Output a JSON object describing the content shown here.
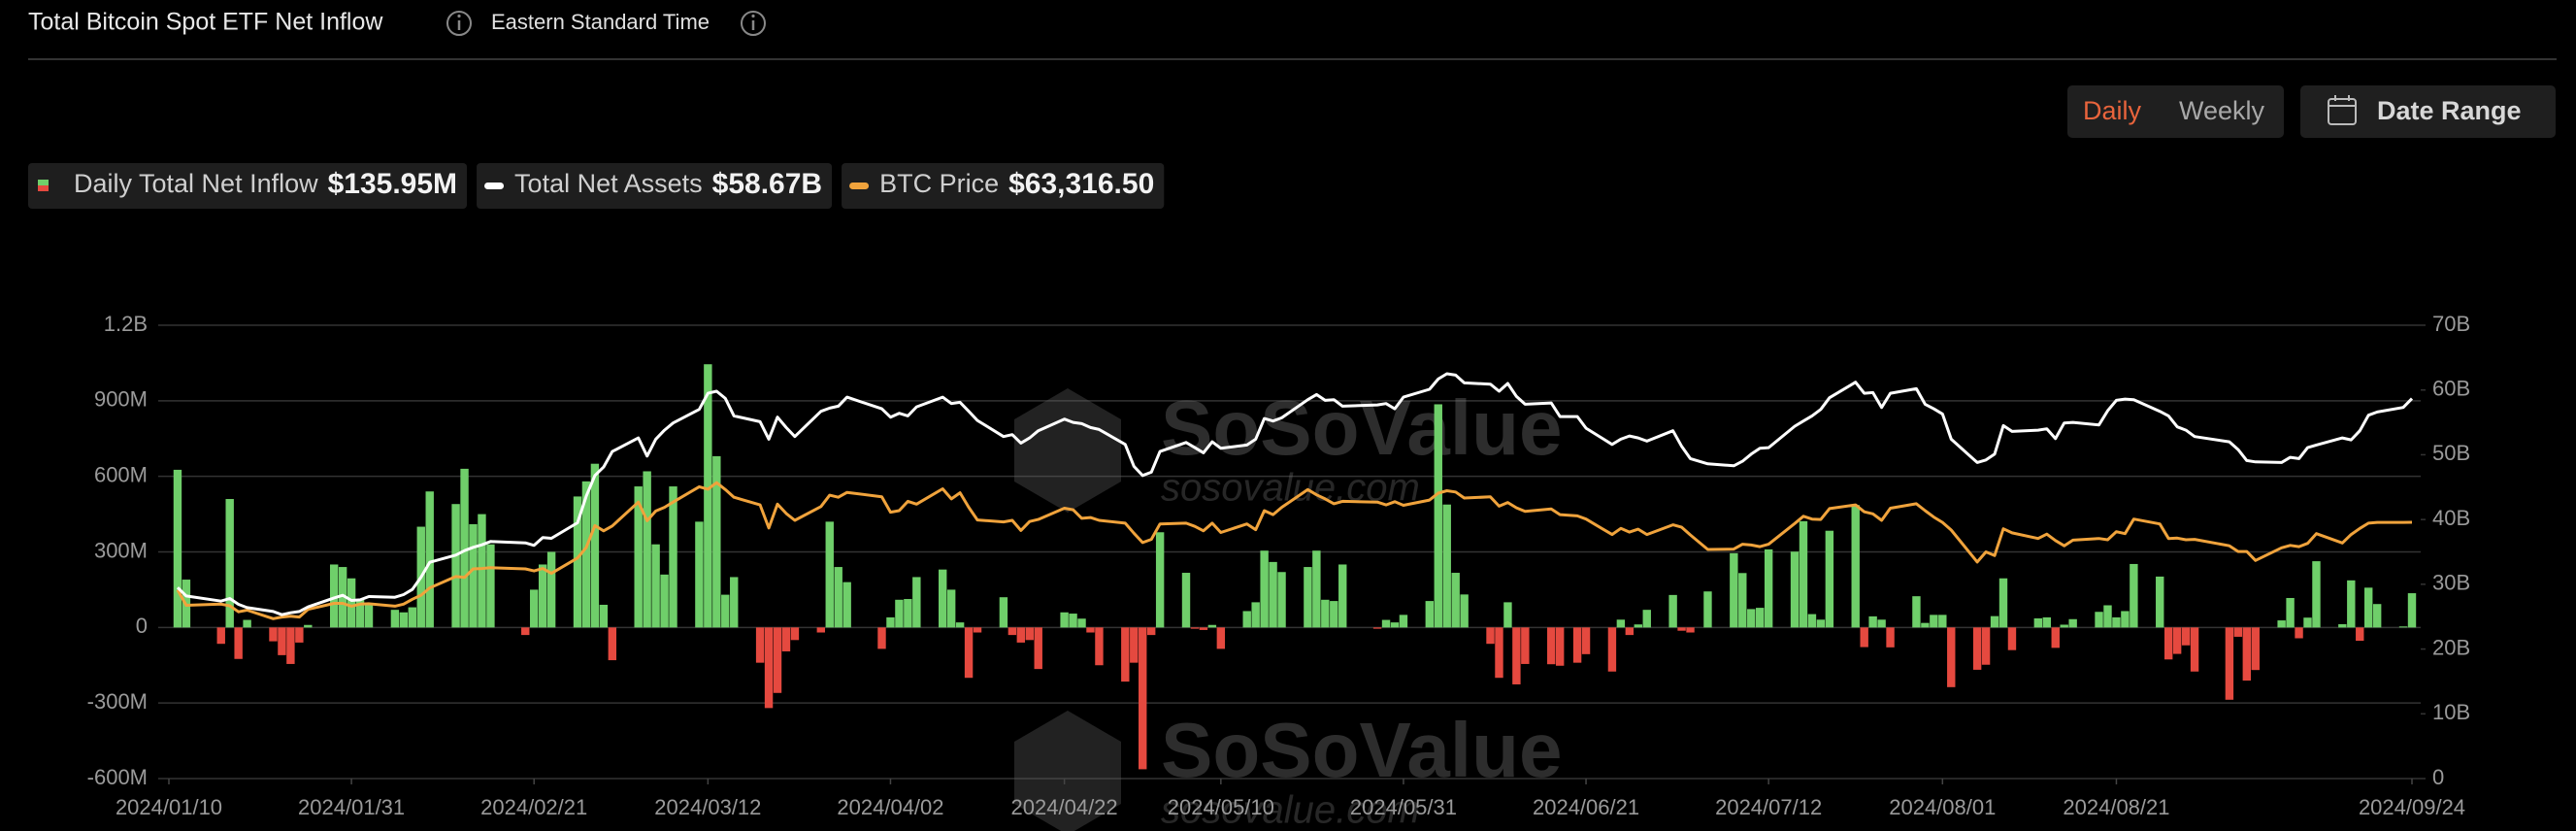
{
  "header": {
    "title": "Total Bitcoin Spot ETF Net Inflow",
    "timezone": "Eastern Standard Time"
  },
  "controls": {
    "periods": [
      "Daily",
      "Weekly"
    ],
    "active_period": "Daily",
    "date_range": "Date Range"
  },
  "watermark": {
    "brand": "SoSoValue",
    "url": "sosovalue.com"
  },
  "chart_data": {
    "type": "bar",
    "x": [
      "2024/01/11",
      "2024/01/12",
      "2024/01/16",
      "2024/01/17",
      "2024/01/18",
      "2024/01/19",
      "2024/01/22",
      "2024/01/23",
      "2024/01/24",
      "2024/01/25",
      "2024/01/26",
      "2024/01/29",
      "2024/01/30",
      "2024/01/31",
      "2024/02/01",
      "2024/02/02",
      "2024/02/05",
      "2024/02/06",
      "2024/02/07",
      "2024/02/08",
      "2024/02/09",
      "2024/02/12",
      "2024/02/13",
      "2024/02/14",
      "2024/02/15",
      "2024/02/16",
      "2024/02/20",
      "2024/02/21",
      "2024/02/22",
      "2024/02/23",
      "2024/02/26",
      "2024/02/27",
      "2024/02/28",
      "2024/02/29",
      "2024/03/01",
      "2024/03/04",
      "2024/03/05",
      "2024/03/06",
      "2024/03/07",
      "2024/03/08",
      "2024/03/11",
      "2024/03/12",
      "2024/03/13",
      "2024/03/14",
      "2024/03/15",
      "2024/03/18",
      "2024/03/19",
      "2024/03/20",
      "2024/03/21",
      "2024/03/22",
      "2024/03/25",
      "2024/03/26",
      "2024/03/27",
      "2024/03/28",
      "2024/04/01",
      "2024/04/02",
      "2024/04/03",
      "2024/04/04",
      "2024/04/05",
      "2024/04/08",
      "2024/04/09",
      "2024/04/10",
      "2024/04/11",
      "2024/04/12",
      "2024/04/15",
      "2024/04/16",
      "2024/04/17",
      "2024/04/18",
      "2024/04/19",
      "2024/04/22",
      "2024/04/23",
      "2024/04/24",
      "2024/04/25",
      "2024/04/26",
      "2024/04/29",
      "2024/04/30",
      "2024/05/01",
      "2024/05/02",
      "2024/05/03",
      "2024/05/06",
      "2024/05/07",
      "2024/05/08",
      "2024/05/09",
      "2024/05/10",
      "2024/05/13",
      "2024/05/14",
      "2024/05/15",
      "2024/05/16",
      "2024/05/17",
      "2024/05/20",
      "2024/05/21",
      "2024/05/22",
      "2024/05/23",
      "2024/05/24",
      "2024/05/28",
      "2024/05/29",
      "2024/05/30",
      "2024/05/31",
      "2024/06/03",
      "2024/06/04",
      "2024/06/05",
      "2024/06/06",
      "2024/06/07",
      "2024/06/10",
      "2024/06/11",
      "2024/06/12",
      "2024/06/13",
      "2024/06/14",
      "2024/06/17",
      "2024/06/18",
      "2024/06/20",
      "2024/06/21",
      "2024/06/24",
      "2024/06/25",
      "2024/06/26",
      "2024/06/27",
      "2024/06/28",
      "2024/07/01",
      "2024/07/02",
      "2024/07/03",
      "2024/07/05",
      "2024/07/08",
      "2024/07/09",
      "2024/07/10",
      "2024/07/11",
      "2024/07/12",
      "2024/07/15",
      "2024/07/16",
      "2024/07/17",
      "2024/07/18",
      "2024/07/19",
      "2024/07/22",
      "2024/07/23",
      "2024/07/24",
      "2024/07/25",
      "2024/07/26",
      "2024/07/29",
      "2024/07/30",
      "2024/07/31",
      "2024/08/01",
      "2024/08/02",
      "2024/08/05",
      "2024/08/06",
      "2024/08/07",
      "2024/08/08",
      "2024/08/09",
      "2024/08/12",
      "2024/08/13",
      "2024/08/14",
      "2024/08/15",
      "2024/08/16",
      "2024/08/19",
      "2024/08/20",
      "2024/08/21",
      "2024/08/22",
      "2024/08/23",
      "2024/08/26",
      "2024/08/27",
      "2024/08/28",
      "2024/08/29",
      "2024/08/30",
      "2024/09/03",
      "2024/09/04",
      "2024/09/05",
      "2024/09/06",
      "2024/09/09",
      "2024/09/10",
      "2024/09/11",
      "2024/09/12",
      "2024/09/13",
      "2024/09/16",
      "2024/09/17",
      "2024/09/18",
      "2024/09/19",
      "2024/09/20",
      "2024/09/23",
      "2024/09/24"
    ],
    "xlim": [
      "2024/01/10",
      "2024/09/24"
    ],
    "xticks": [
      "2024/01/10",
      "2024/01/31",
      "2024/02/21",
      "2024/03/12",
      "2024/04/02",
      "2024/04/22",
      "2024/05/10",
      "2024/05/31",
      "2024/06/21",
      "2024/07/12",
      "2024/08/01",
      "2024/08/21",
      "2024/09/24"
    ],
    "ylim": [
      -600,
      1200
    ],
    "yticks": [
      {
        "value": -600,
        "label": "-600M"
      },
      {
        "value": -300,
        "label": "-300M"
      },
      0,
      {
        "value": 300,
        "label": "300M"
      },
      {
        "value": 600,
        "label": "600M"
      },
      {
        "value": 900,
        "label": "900M"
      },
      {
        "value": 1200,
        "label": "1.2B"
      }
    ],
    "y2lim": [
      0,
      70
    ],
    "y2ticks": [
      0,
      {
        "value": 10,
        "label": "10B"
      },
      {
        "value": 20,
        "label": "20B"
      },
      {
        "value": 30,
        "label": "30B"
      },
      {
        "value": 40,
        "label": "40B"
      },
      {
        "value": 50,
        "label": "50B"
      },
      {
        "value": 60,
        "label": "60B"
      },
      {
        "value": 70,
        "label": "70B"
      }
    ],
    "y3lim": [
      0,
      112000
    ],
    "grid": true,
    "series": [
      {
        "name": "Daily Total Net Inflow",
        "type": "bar",
        "axis": "y",
        "color": "#6fcf6a",
        "negative_color": "#e5493f",
        "latest_label": "$135.95M",
        "values": [
          626,
          190,
          -65,
          510,
          -125,
          30,
          -55,
          -110,
          -145,
          -60,
          10,
          250,
          240,
          195,
          110,
          90,
          70,
          60,
          80,
          400,
          540,
          490,
          630,
          410,
          450,
          330,
          -30,
          150,
          250,
          300,
          520,
          580,
          650,
          90,
          -130,
          560,
          620,
          330,
          210,
          560,
          420,
          1045,
          680,
          130,
          200,
          -140,
          -320,
          -260,
          -95,
          -50,
          -20,
          420,
          240,
          180,
          -85,
          40,
          110,
          113,
          200,
          230,
          150,
          20,
          -200,
          -20,
          120,
          -30,
          -60,
          -50,
          -165,
          60,
          55,
          35,
          -20,
          -150,
          -215,
          -140,
          -563,
          -30,
          378,
          217,
          -5,
          -10,
          10,
          -85,
          65,
          100,
          305,
          260,
          220,
          240,
          305,
          110,
          105,
          250,
          -5,
          30,
          20,
          50,
          105,
          886,
          488,
          217,
          131,
          -65,
          -200,
          100,
          -226,
          -145,
          -146,
          -152,
          -140,
          -106,
          -175,
          31,
          -30,
          12,
          70,
          129,
          -13,
          -20,
          143,
          295,
          216,
          73,
          78,
          310,
          301,
          422,
          53,
          31,
          384,
          486,
          -78,
          44,
          31,
          -79,
          124,
          18,
          50,
          50,
          -237,
          -168,
          -148,
          45,
          195,
          -90,
          36,
          40,
          -81,
          11,
          33,
          62,
          88,
          40,
          65,
          252,
          202,
          -127,
          -105,
          -71,
          -175,
          -287,
          -37,
          -211,
          -169,
          28,
          117,
          -43,
          39,
          263,
          13,
          187,
          -53,
          158,
          93,
          4,
          135.95
        ]
      },
      {
        "name": "Total Net Assets",
        "type": "line",
        "axis": "y2",
        "color": "#ffffff",
        "latest_label": "$58.67B",
        "values": [
          29.5,
          28.2,
          27.4,
          27.8,
          26.9,
          26.4,
          25.8,
          25.3,
          25.6,
          25.8,
          26.5,
          27.9,
          28.3,
          27.5,
          27.6,
          28.1,
          28.0,
          28.4,
          29.2,
          31.1,
          33.4,
          34.5,
          35.2,
          35.7,
          36.1,
          36.6,
          36.4,
          36.0,
          37.2,
          37.1,
          39.5,
          43.6,
          46.8,
          48.1,
          50.5,
          52.6,
          49.8,
          52.4,
          53.8,
          54.9,
          57.0,
          59.5,
          59.8,
          58.7,
          56.0,
          55.1,
          52.4,
          55.8,
          54.2,
          52.8,
          56.7,
          57.2,
          57.5,
          58.9,
          57.1,
          55.8,
          56.4,
          56.0,
          57.4,
          58.9,
          57.9,
          58.1,
          56.7,
          55.3,
          52.8,
          53.1,
          51.8,
          52.6,
          53.7,
          55.5,
          55.0,
          54.8,
          54.2,
          53.9,
          51.6,
          48.2,
          46.8,
          47.3,
          50.5,
          51.9,
          51.1,
          50.3,
          52.0,
          51.0,
          51.5,
          52.4,
          55.6,
          55.2,
          55.7,
          58.5,
          59.3,
          58.4,
          58.5,
          57.5,
          57.7,
          57.9,
          57.1,
          58.9,
          60.1,
          61.7,
          62.5,
          62.3,
          61.1,
          60.9,
          59.8,
          61.0,
          59.0,
          57.8,
          58.0,
          55.9,
          55.9,
          54.1,
          51.6,
          52.4,
          52.9,
          52.6,
          52.1,
          53.7,
          51.3,
          49.4,
          48.6,
          48.3,
          49.0,
          50.1,
          51.0,
          51.1,
          54.4,
          55.2,
          56.0,
          57.0,
          58.8,
          61.2,
          59.5,
          59.6,
          57.3,
          59.5,
          60.2,
          57.8,
          57.1,
          56.3,
          52.4,
          48.8,
          49.2,
          50.1,
          54.5,
          53.6,
          53.8,
          54.0,
          52.5,
          54.9,
          55.0,
          54.6,
          56.8,
          58.4,
          58.6,
          58.5,
          56.7,
          56.0,
          54.3,
          53.8,
          52.8,
          52.0,
          50.8,
          49.1,
          48.9,
          48.8,
          49.6,
          49.4,
          51.1,
          51.5,
          52.6,
          52.3,
          53.7,
          56.1,
          56.6,
          57.3,
          58.67
        ]
      },
      {
        "name": "BTC Price",
        "type": "line",
        "axis": "y3",
        "color": "#f0a33c",
        "latest_label": "$63,316.50",
        "values": [
          46600,
          42800,
          43100,
          42700,
          41200,
          41600,
          39500,
          39900,
          40100,
          39900,
          41800,
          43300,
          43300,
          42600,
          43100,
          43200,
          42600,
          43100,
          44300,
          45300,
          47100,
          49900,
          49700,
          51800,
          51900,
          52100,
          51800,
          51300,
          51900,
          50700,
          54500,
          57100,
          62500,
          61200,
          62400,
          68300,
          63700,
          66100,
          67000,
          68300,
          72100,
          71500,
          73100,
          71400,
          69500,
          67600,
          61900,
          67800,
          65500,
          63800,
          67200,
          70000,
          69500,
          70700,
          69600,
          65800,
          66200,
          68500,
          67800,
          71600,
          69100,
          70600,
          67000,
          63900,
          63400,
          63800,
          61300,
          63500,
          64000,
          66800,
          66400,
          64300,
          64500,
          63800,
          63100,
          60600,
          58300,
          59100,
          62900,
          63100,
          62300,
          61200,
          63100,
          60800,
          62900,
          61500,
          66200,
          65200,
          67000,
          71400,
          70100,
          69100,
          67900,
          68500,
          68300,
          67600,
          68400,
          67500,
          68800,
          70500,
          71100,
          70800,
          69300,
          69600,
          67300,
          68200,
          66900,
          66000,
          66600,
          65200,
          64900,
          64100,
          60300,
          61800,
          60900,
          61600,
          60300,
          62700,
          62100,
          60200,
          56600,
          56700,
          57900,
          57700,
          57300,
          57900,
          63000,
          64800,
          64100,
          64000,
          66700,
          67600,
          65900,
          65400,
          63800,
          66800,
          67900,
          66200,
          64600,
          63300,
          61400,
          53500,
          56000,
          55100,
          61700,
          60700,
          59300,
          60400,
          58800,
          57500,
          58900,
          59300,
          59000,
          61000,
          60500,
          64100,
          62900,
          59300,
          59400,
          59000,
          59100,
          57500,
          56100,
          56100,
          53900,
          57000,
          57600,
          57300,
          58100,
          60500,
          58200,
          60300,
          61800,
          63100,
          63300,
          63300,
          63316.5
        ]
      }
    ]
  }
}
